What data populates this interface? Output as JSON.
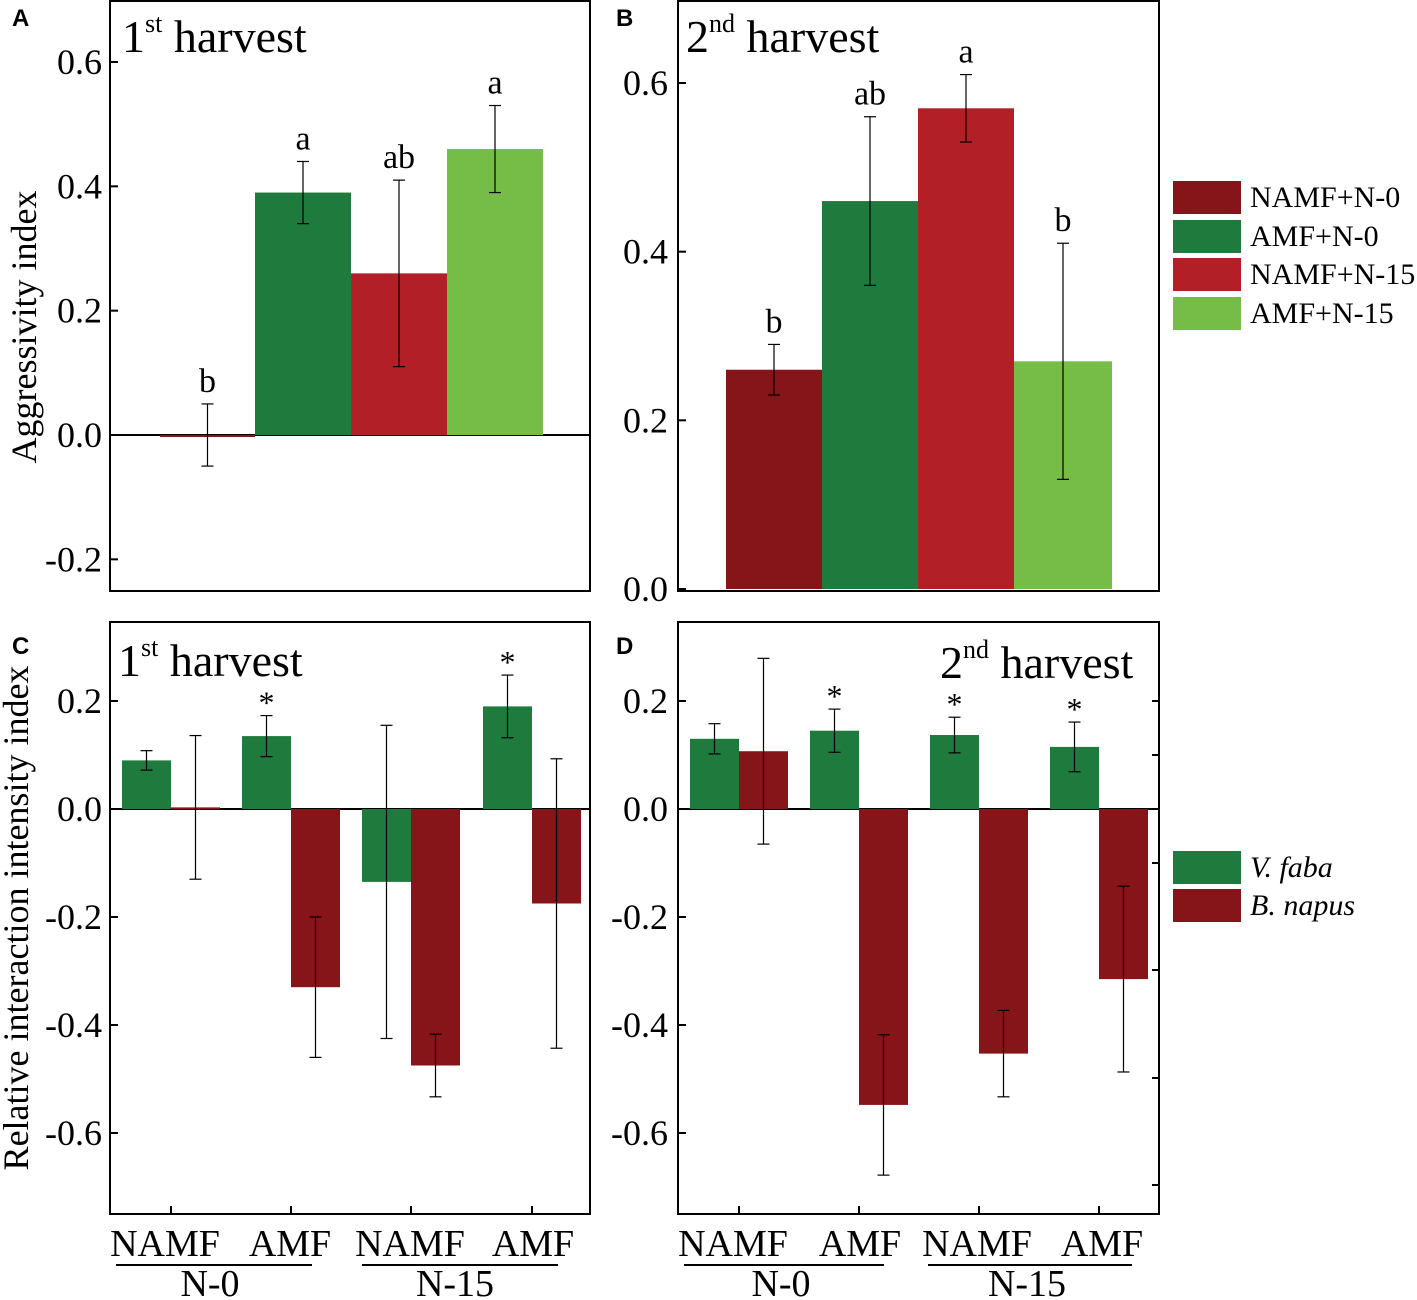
{
  "colors": {
    "NAMF_N0": "#861519",
    "AMF_N0": "#1f7a3d",
    "NAMF_N15": "#b21f26",
    "AMF_N15": "#76bd47",
    "vfaba": "#1f7a3d",
    "bnapus": "#861519"
  },
  "y_axis_labels": {
    "top": "Aggressivity index",
    "bottom": "Relative interaction intensity index"
  },
  "legend_top": [
    {
      "label": "NAMF+N-0",
      "color": "#861519"
    },
    {
      "label": "AMF+N-0",
      "color": "#1f7a3d"
    },
    {
      "label": "NAMF+N-15",
      "color": "#b21f26"
    },
    {
      "label": "AMF+N-15",
      "color": "#76bd47"
    }
  ],
  "legend_bottom": [
    {
      "label": "V. faba",
      "color": "#1f7a3d"
    },
    {
      "label": "B. napus",
      "color": "#861519"
    }
  ],
  "x_axis": {
    "groups": [
      "N-0",
      "N-15"
    ],
    "subgroups": [
      "NAMF",
      "AMF",
      "NAMF",
      "AMF"
    ]
  },
  "chart_data": [
    {
      "panel": "A",
      "type": "bar",
      "title_base": "1",
      "title_sup": "st",
      "title_rest": " harvest",
      "ylabel": "Aggressivity index",
      "ylim": [
        -0.25,
        0.7
      ],
      "yticks": [
        "-0.2",
        "0.0",
        "0.2",
        "0.4",
        "0.6"
      ],
      "ytick_values": [
        -0.2,
        0.0,
        0.2,
        0.4,
        0.6
      ],
      "categories": [
        "NAMF+N-0",
        "AMF+N-0",
        "NAMF+N-15",
        "AMF+N-15"
      ],
      "values": [
        0.0,
        0.39,
        0.26,
        0.46
      ],
      "errors": [
        0.05,
        0.05,
        0.15,
        0.07
      ],
      "significance": [
        "b",
        "a",
        "ab",
        "a"
      ]
    },
    {
      "panel": "B",
      "type": "bar",
      "title_base": "2",
      "title_sup": "nd",
      "title_rest": " harvest",
      "ylabel": "Aggressivity index",
      "ylim": [
        0.0,
        0.7
      ],
      "yticks": [
        "0.0",
        "0.2",
        "0.4",
        "0.6"
      ],
      "ytick_values": [
        0.0,
        0.2,
        0.4,
        0.6
      ],
      "categories": [
        "NAMF+N-0",
        "AMF+N-0",
        "NAMF+N-15",
        "AMF+N-15"
      ],
      "values": [
        0.26,
        0.46,
        0.57,
        0.27
      ],
      "errors": [
        0.03,
        0.1,
        0.04,
        0.14
      ],
      "significance": [
        "b",
        "ab",
        "a",
        "b"
      ]
    },
    {
      "panel": "C",
      "type": "bar",
      "title_base": "1",
      "title_sup": "st",
      "title_rest": " harvest",
      "ylabel": "Relative interaction intensity index",
      "ylim": [
        -0.75,
        0.35
      ],
      "yticks": [
        "-0.6",
        "-0.4",
        "-0.2",
        "0.0",
        "0.2"
      ],
      "ytick_values": [
        -0.6,
        -0.4,
        -0.2,
        0.0,
        0.2
      ],
      "categories": [
        "N-0 NAMF",
        "N-0 AMF",
        "N-15 NAMF",
        "N-15 AMF"
      ],
      "series": [
        {
          "name": "V. faba",
          "values": [
            0.09,
            0.135,
            -0.135,
            0.19
          ],
          "errors": [
            0.018,
            0.038,
            0.29,
            0.058
          ],
          "marks": [
            "",
            "*",
            "",
            "*"
          ]
        },
        {
          "name": "B. napus",
          "values": [
            0.003,
            -0.33,
            -0.475,
            -0.175
          ],
          "errors": [
            0.133,
            0.13,
            0.058,
            0.268
          ],
          "marks": [
            "",
            "",
            "",
            ""
          ]
        }
      ]
    },
    {
      "panel": "D",
      "type": "bar",
      "title_base": "2",
      "title_sup": "nd",
      "title_rest": " harvest",
      "ylabel": "Relative interaction intensity index",
      "ylim": [
        -0.75,
        0.35
      ],
      "yticks": [
        "-0.6",
        "-0.4",
        "-0.2",
        "0.0",
        "0.2"
      ],
      "ytick_values": [
        -0.6,
        -0.4,
        -0.2,
        0.0,
        0.2
      ],
      "categories": [
        "N-0 NAMF",
        "N-0 AMF",
        "N-15 NAMF",
        "N-15 AMF"
      ],
      "series": [
        {
          "name": "V. faba",
          "values": [
            0.13,
            0.145,
            0.137,
            0.115
          ],
          "errors": [
            0.028,
            0.04,
            0.033,
            0.046
          ],
          "marks": [
            "",
            "*",
            "*",
            "*"
          ]
        },
        {
          "name": "B. napus",
          "values": [
            0.107,
            -0.548,
            -0.453,
            -0.315
          ],
          "errors": [
            0.172,
            0.13,
            0.08,
            0.172
          ],
          "marks": [
            "",
            "",
            "",
            ""
          ]
        }
      ]
    }
  ]
}
